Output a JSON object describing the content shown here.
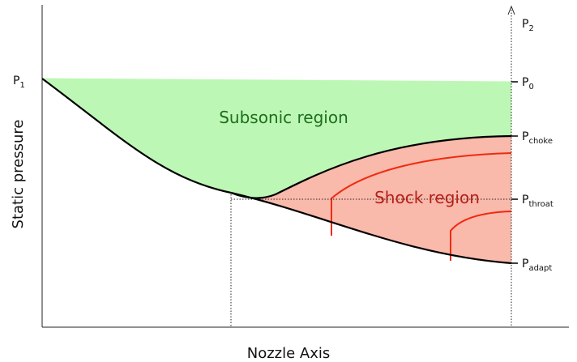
{
  "axes": {
    "x_label": "Nozzle Axis",
    "y_label": "Static pressure"
  },
  "regions": [
    {
      "label": "Subsonic region"
    },
    {
      "label": "Shock region"
    }
  ],
  "pressure_levels": [
    {
      "symbol": "P",
      "subscript": "1"
    },
    {
      "symbol": "P",
      "subscript": "2"
    },
    {
      "symbol": "P",
      "subscript": "0"
    },
    {
      "symbol": "P",
      "subscript": "choke"
    },
    {
      "symbol": "P",
      "subscript": "throat"
    },
    {
      "symbol": "P",
      "subscript": "adapt"
    }
  ]
}
